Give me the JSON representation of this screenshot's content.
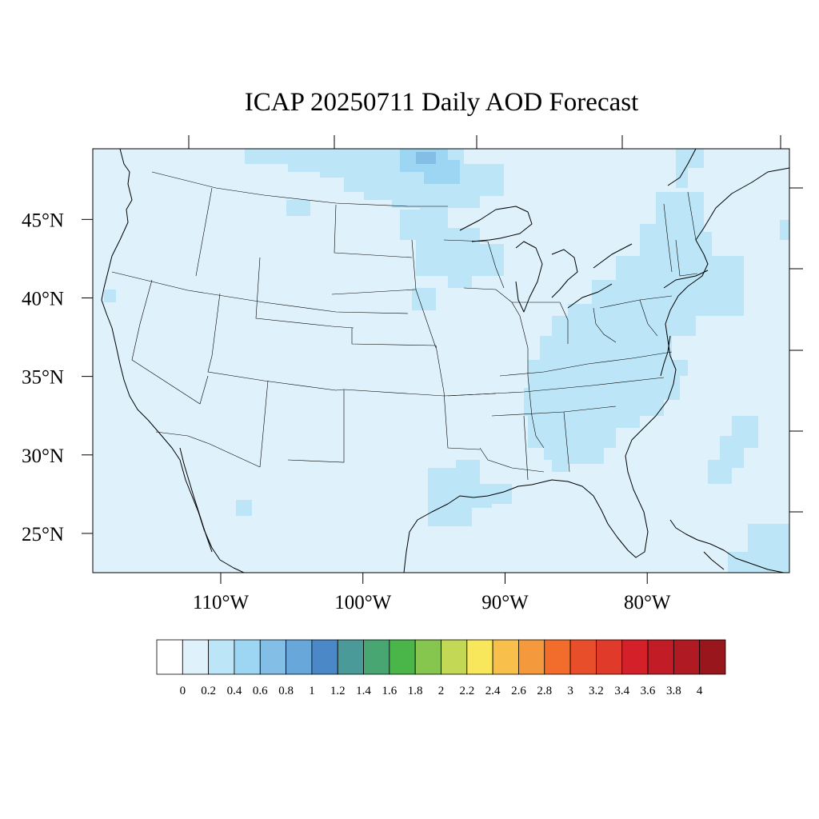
{
  "title": "ICAP 20250711 Daily AOD Forecast",
  "map": {
    "projection": "cylindrical-equidistant",
    "lon_range": [
      -119,
      -70
    ],
    "lat_range": [
      22.5,
      49.5
    ],
    "latitude_ticks": [
      {
        "value": 45,
        "label": "45°N"
      },
      {
        "value": 40,
        "label": "40°N"
      },
      {
        "value": 35,
        "label": "35°N"
      },
      {
        "value": 30,
        "label": "30°N"
      },
      {
        "value": 25,
        "label": "25°N"
      }
    ],
    "longitude_ticks": [
      {
        "value": -110,
        "label": "110°W"
      },
      {
        "value": -100,
        "label": "100°W"
      },
      {
        "value": -90,
        "label": "90°W"
      },
      {
        "value": -80,
        "label": "80°W"
      }
    ],
    "background_value_range": "0.2-0.4",
    "background_color": "#dff1fa",
    "outline_color": "#000000"
  },
  "colorbar": {
    "colors": [
      "#ffffff",
      "#dff1fa",
      "#bce6f7",
      "#9dd6f2",
      "#82bee6",
      "#67a7da",
      "#4a88c8",
      "#4a9a9a",
      "#47a672",
      "#4ab549",
      "#86c54e",
      "#c3d955",
      "#f8e75a",
      "#f8c04a",
      "#f59a3c",
      "#f26c2b",
      "#e94e2b",
      "#e03a2a",
      "#d42029",
      "#c21c27",
      "#b01a23",
      "#99171c"
    ],
    "labels": [
      "0",
      "0.2",
      "0.4",
      "0.6",
      "0.8",
      "1",
      "1.2",
      "1.4",
      "1.6",
      "1.8",
      "2",
      "2.2",
      "2.4",
      "2.6",
      "2.8",
      "3",
      "3.2",
      "3.4",
      "3.6",
      "3.8",
      "4"
    ]
  }
}
